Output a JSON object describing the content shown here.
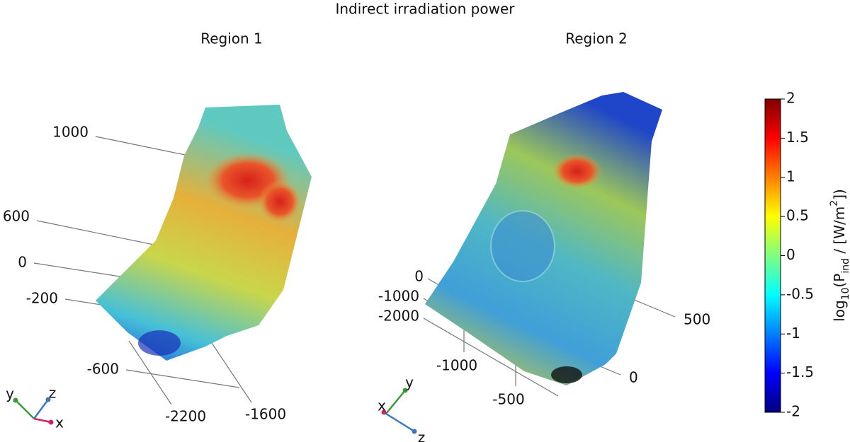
{
  "figure": {
    "title": "Indirect irradiation power"
  },
  "chart_data": [
    {
      "type": "surface3d",
      "title": "Region 1",
      "axes": [
        {
          "ticks": [
            1000,
            600
          ]
        },
        {
          "ticks": [
            0,
            -200,
            -600
          ]
        },
        {
          "ticks": [
            -2200,
            -1600
          ]
        }
      ],
      "triad": [
        "y",
        "z",
        "x"
      ]
    },
    {
      "type": "surface3d",
      "title": "Region 2",
      "axes": [
        {
          "ticks": [
            0,
            -1000,
            -2000
          ]
        },
        {
          "ticks": [
            -1000,
            -500
          ]
        },
        {
          "ticks": [
            500,
            0
          ]
        }
      ],
      "triad": [
        "y",
        "x",
        "z"
      ]
    }
  ],
  "colorbar": {
    "clim": [
      -2,
      2
    ],
    "ticks": [
      2,
      1.5,
      1,
      0.5,
      0,
      -0.5,
      -1,
      -1.5,
      -2
    ],
    "label": [
      "log",
      "10",
      "(P",
      "ind",
      " / [W/m",
      "2",
      "])"
    ],
    "colors": [
      "#00007f",
      "#0000ff",
      "#007fff",
      "#00ffff",
      "#7fff7f",
      "#ffff00",
      "#ff7f00",
      "#ff0000",
      "#7f0000"
    ]
  }
}
